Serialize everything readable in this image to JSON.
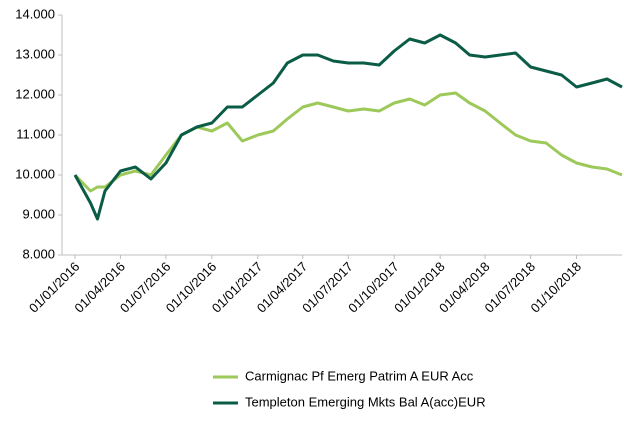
{
  "chart_data": {
    "type": "line",
    "x": [
      "01/01/2016",
      "01/02/2016",
      "15/02/2016",
      "01/03/2016",
      "01/04/2016",
      "01/05/2016",
      "01/06/2016",
      "01/07/2016",
      "01/08/2016",
      "01/09/2016",
      "01/10/2016",
      "01/11/2016",
      "01/12/2016",
      "01/01/2017",
      "01/02/2017",
      "01/03/2017",
      "01/04/2017",
      "01/05/2017",
      "01/06/2017",
      "01/07/2017",
      "01/08/2017",
      "01/09/2017",
      "01/10/2017",
      "01/11/2017",
      "01/12/2017",
      "01/01/2018",
      "01/02/2018",
      "01/03/2018",
      "01/04/2018",
      "01/05/2018",
      "01/06/2018",
      "01/07/2018",
      "01/08/2018",
      "01/09/2018",
      "01/10/2018",
      "01/11/2018",
      "01/12/2018",
      "31/12/2018"
    ],
    "series": [
      {
        "name": "Carmignac Pf Emerg Patrim A EUR Acc",
        "color": "#9dc85a",
        "values": [
          10.0,
          9.6,
          9.7,
          9.7,
          10.0,
          10.1,
          10.0,
          10.5,
          11.0,
          11.2,
          11.1,
          11.3,
          10.85,
          11.0,
          11.1,
          11.4,
          11.7,
          11.8,
          11.7,
          11.6,
          11.65,
          11.6,
          11.8,
          11.9,
          11.75,
          12.0,
          12.05,
          11.8,
          11.6,
          11.3,
          11.0,
          10.85,
          10.8,
          10.5,
          10.3,
          10.2,
          10.15,
          10.0
        ]
      },
      {
        "name": "Templeton Emerging Mkts Bal A(acc)EUR",
        "color": "#0a5c46",
        "values": [
          10.0,
          9.3,
          8.9,
          9.6,
          10.1,
          10.2,
          9.9,
          10.3,
          11.0,
          11.2,
          11.3,
          11.7,
          11.7,
          12.0,
          12.3,
          12.8,
          13.0,
          13.0,
          12.85,
          12.8,
          12.8,
          12.75,
          13.1,
          13.4,
          13.3,
          13.5,
          13.3,
          13.0,
          12.95,
          13.0,
          13.05,
          12.7,
          12.6,
          12.5,
          12.2,
          12.3,
          12.4,
          12.2
        ]
      }
    ],
    "xlim": [
      "01/01/2016",
      "31/12/2018"
    ],
    "xticks": [
      "01/01/2016",
      "01/04/2016",
      "01/07/2016",
      "01/10/2016",
      "01/01/2017",
      "01/04/2017",
      "01/07/2017",
      "01/10/2017",
      "01/01/2018",
      "01/04/2018",
      "01/07/2018",
      "01/10/2018"
    ],
    "ylim": [
      8,
      14
    ],
    "yticks": [
      {
        "value": 8,
        "label": "8.000"
      },
      {
        "value": 9,
        "label": "9.000"
      },
      {
        "value": 10,
        "label": "10.000"
      },
      {
        "value": 11,
        "label": "11.000"
      },
      {
        "value": 12,
        "label": "12.000"
      },
      {
        "value": 13,
        "label": "13.000"
      },
      {
        "value": 14,
        "label": "14.000"
      }
    ],
    "legend": "bottom"
  }
}
